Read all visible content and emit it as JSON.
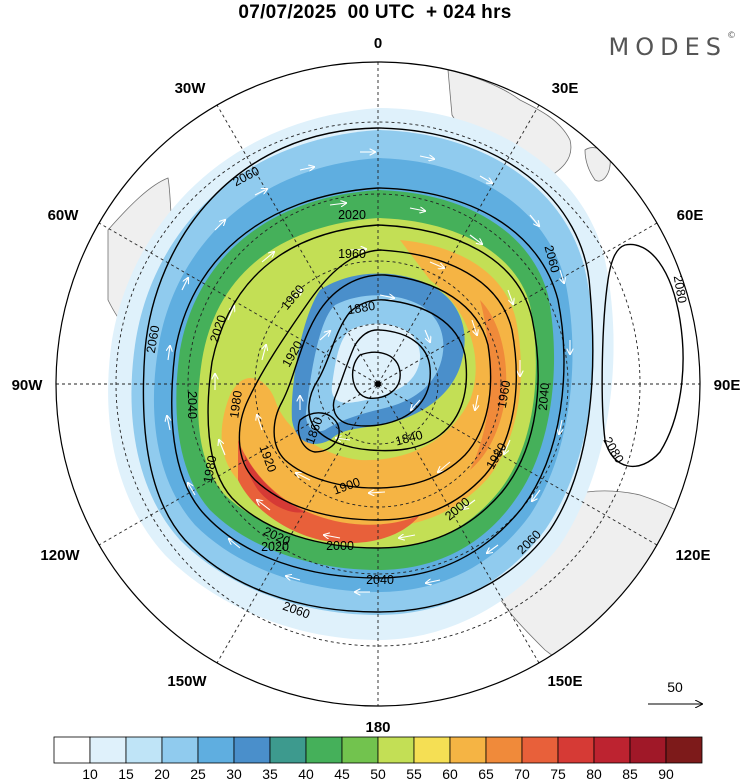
{
  "title": "07/07/2025  00 UTC  + 024 hrs",
  "brand": {
    "name": "MODES",
    "mark": "©"
  },
  "longitude_labels": {
    "n0": "0",
    "n30e": "30E",
    "n60e": "60E",
    "n90e": "90E",
    "n120e": "120E",
    "n150e": "150E",
    "n180": "180",
    "n150w": "150W",
    "n120w": "120W",
    "n90w": "90W",
    "n60w": "60W",
    "n30w": "30W"
  },
  "contour_labels": [
    "2060",
    "2020",
    "1960",
    "1960",
    "1880",
    "1920",
    "2020",
    "2060",
    "2060",
    "2080",
    "2040",
    "1980",
    "1860",
    "1920",
    "1980",
    "2020",
    "1900",
    "1840",
    "1960",
    "2040",
    "1980",
    "2000",
    "2000",
    "2020",
    "2060",
    "2080",
    "2040",
    "2060"
  ],
  "vector_reference": {
    "label": "50"
  },
  "colorbar": {
    "labels": [
      "10",
      "15",
      "20",
      "25",
      "30",
      "35",
      "40",
      "45",
      "50",
      "55",
      "60",
      "65",
      "70",
      "75",
      "80",
      "85",
      "90"
    ],
    "colors": [
      "#ffffff",
      "#dff1fb",
      "#bfe4f7",
      "#90cbee",
      "#5faee0",
      "#4a8fcb",
      "#3d9a8e",
      "#45b05a",
      "#72c34e",
      "#c3df55",
      "#f5df54",
      "#f5b444",
      "#f08a3a",
      "#e8603a",
      "#d63a35",
      "#bd2330",
      "#a01828",
      "#7d1a1a"
    ]
  },
  "colors": {
    "land": "#efefef",
    "coast": "#707070",
    "contour": "#000000",
    "vector": "#ffffff"
  }
}
